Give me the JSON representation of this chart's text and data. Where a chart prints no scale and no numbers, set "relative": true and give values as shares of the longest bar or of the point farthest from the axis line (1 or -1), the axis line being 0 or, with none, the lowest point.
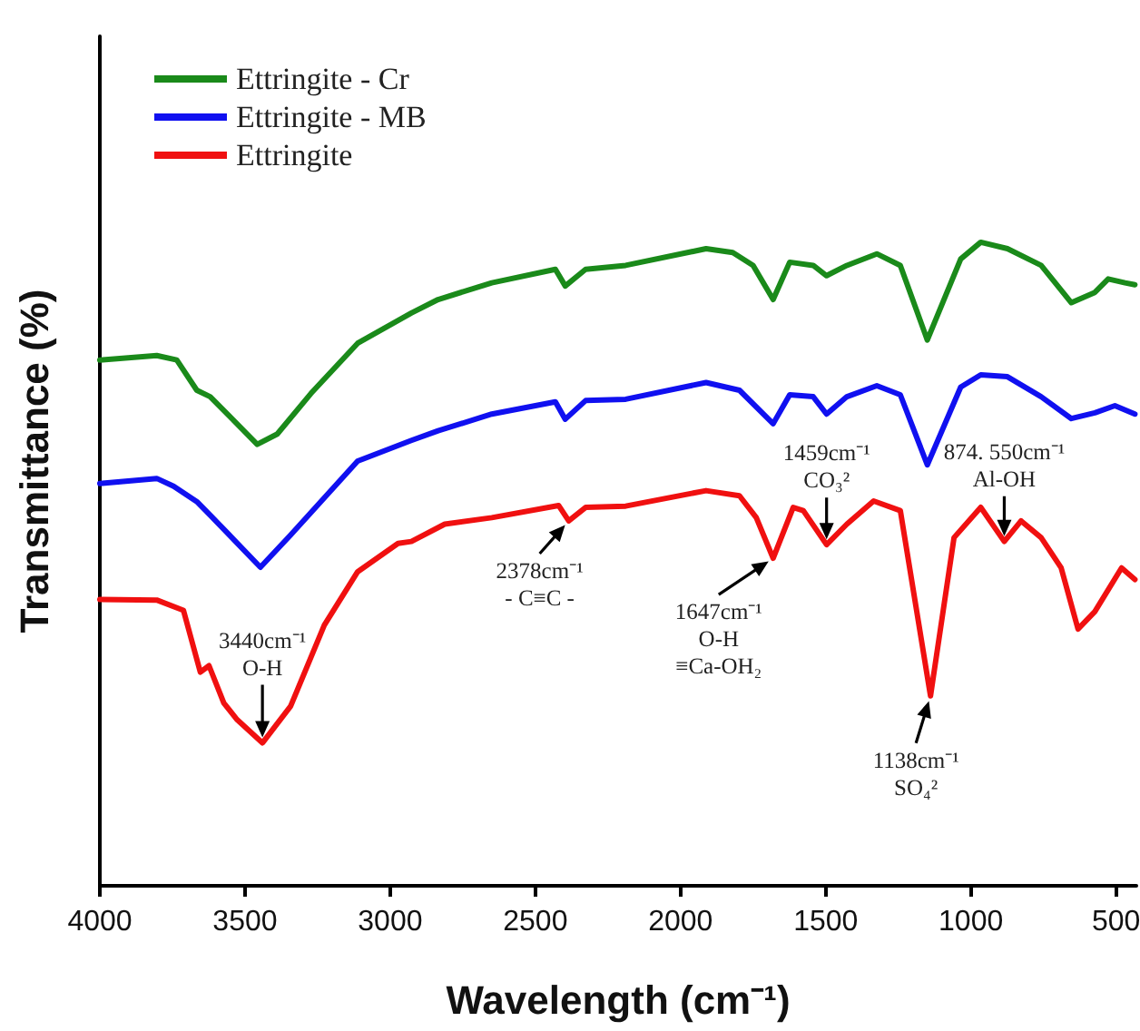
{
  "chart_data": {
    "type": "line",
    "relative": true,
    "xlabel": "Wavelength (cm⁻¹)",
    "ylabel": "Transmittance (%)",
    "xlim": [
      4000,
      430
    ],
    "xticks": [
      4000,
      3500,
      3000,
      2500,
      2000,
      1500,
      1000,
      500
    ],
    "tick_labels": "x",
    "legend": "top left",
    "marker": "none",
    "line_style": "solid",
    "series": [
      {
        "name": "Ettringite - Cr",
        "color": "#1a8a1a",
        "x": [
          4000,
          3804,
          3735,
          3666,
          3620,
          3458,
          3389,
          3273,
          3112,
          2927,
          2835,
          2650,
          2431,
          2397,
          2327,
          2189,
          1912,
          1820,
          1750,
          1681,
          1624,
          1543,
          1497,
          1427,
          1324,
          1243,
          1150,
          1035,
          966,
          874,
          758,
          654,
          573,
          527,
          469,
          435
        ],
        "values": [
          0.817,
          0.824,
          0.817,
          0.77,
          0.76,
          0.686,
          0.702,
          0.765,
          0.843,
          0.89,
          0.911,
          0.937,
          0.958,
          0.932,
          0.958,
          0.964,
          0.99,
          0.984,
          0.964,
          0.911,
          0.969,
          0.964,
          0.948,
          0.964,
          0.982,
          0.964,
          0.848,
          0.974,
          1,
          0.99,
          0.964,
          0.906,
          0.922,
          0.943,
          0.937,
          0.934
        ]
      },
      {
        "name": "Ettringite - MB",
        "color": "#1010f0",
        "x": [
          4000,
          3804,
          3746,
          3666,
          3620,
          3447,
          3343,
          3112,
          2927,
          2835,
          2650,
          2431,
          2397,
          2327,
          2189,
          1912,
          1797,
          1681,
          1624,
          1543,
          1497,
          1427,
          1324,
          1243,
          1150,
          1035,
          966,
          874,
          758,
          654,
          573,
          504,
          435
        ],
        "values": [
          0.625,
          0.633,
          0.621,
          0.597,
          0.576,
          0.495,
          0.545,
          0.66,
          0.692,
          0.707,
          0.733,
          0.752,
          0.725,
          0.754,
          0.756,
          0.782,
          0.77,
          0.718,
          0.763,
          0.76,
          0.733,
          0.76,
          0.777,
          0.763,
          0.654,
          0.775,
          0.794,
          0.791,
          0.76,
          0.726,
          0.735,
          0.746,
          0.733
        ]
      },
      {
        "name": "Ettringite",
        "color": "#f01010",
        "x": [
          4000,
          3804,
          3712,
          3654,
          3624,
          3573,
          3527,
          3440,
          3343,
          3227,
          3112,
          2973,
          2927,
          2812,
          2650,
          2420,
          2385,
          2327,
          2189,
          1912,
          1797,
          1739,
          1681,
          1612,
          1577,
          1497,
          1427,
          1335,
          1243,
          1139,
          1058,
          966,
          885,
          827,
          758,
          689,
          631,
          573,
          481,
          435
        ],
        "values": [
          0.445,
          0.444,
          0.428,
          0.332,
          0.342,
          0.284,
          0.258,
          0.222,
          0.279,
          0.405,
          0.488,
          0.532,
          0.535,
          0.562,
          0.572,
          0.591,
          0.567,
          0.588,
          0.59,
          0.614,
          0.606,
          0.572,
          0.509,
          0.588,
          0.583,
          0.53,
          0.562,
          0.598,
          0.583,
          0.295,
          0.541,
          0.588,
          0.535,
          0.567,
          0.541,
          0.494,
          0.399,
          0.426,
          0.494,
          0.476
        ]
      }
    ],
    "annotations": [
      {
        "text": "3440cm⁻¹\nO-H",
        "x": 3440,
        "y": 0.222
      },
      {
        "text": "2378cm⁻¹\n- C≡C -",
        "x": 2385,
        "y": 0.567
      },
      {
        "text": "1647cm⁻¹\nO-H\n≡Ca-OH₂",
        "x": 1681,
        "y": 0.509
      },
      {
        "text": "1459cm⁻¹\nCO₃²",
        "x": 1497,
        "y": 0.53
      },
      {
        "text": "1138cm⁻¹\nSO₄²",
        "x": 1139,
        "y": 0.295
      },
      {
        "text": "874. 550cm⁻¹\nAl-OH",
        "x": 885,
        "y": 0.535
      }
    ]
  }
}
